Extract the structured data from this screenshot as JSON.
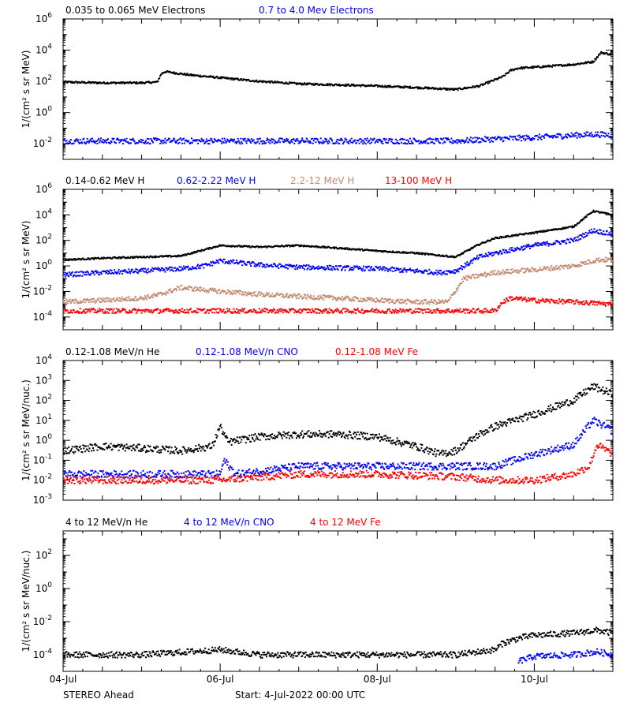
{
  "figure": {
    "footer": {
      "spacecraft": "STEREO Ahead",
      "start_label": "Start:  4-Jul-2022 00:00 UTC"
    },
    "x_axis": {
      "tick_labels": [
        "04-Jul",
        "06-Jul",
        "08-Jul",
        "10-Jul"
      ]
    }
  },
  "chart_data": [
    {
      "type": "scatter",
      "panel": "electrons",
      "ylabel": "1/(cm² s sr MeV)",
      "y_log": true,
      "ylim": [
        0.001,
        1000000
      ],
      "y_ticks": [
        "10^-2",
        "10^0",
        "10^2",
        "10^4",
        "10^6"
      ],
      "xlim_days": [
        0,
        7
      ],
      "series": [
        {
          "name": "0.035 to 0.065 MeV Electrons",
          "color": "#000000",
          "x": [
            0,
            0.5,
            1.0,
            1.2,
            1.25,
            1.3,
            1.6,
            2.0,
            2.5,
            3.0,
            3.5,
            4.0,
            4.5,
            5.0,
            5.3,
            5.6,
            5.7,
            5.8,
            6.0,
            6.5,
            6.75,
            6.85,
            7.0
          ],
          "y": [
            90,
            80,
            80,
            90,
            300,
            420,
            260,
            170,
            100,
            70,
            60,
            50,
            40,
            30,
            50,
            200,
            500,
            700,
            800,
            1200,
            1800,
            7000,
            5000
          ]
        },
        {
          "name": "0.7 to 4.0 Mev Electrons",
          "color": "#0000ff",
          "x": [
            0,
            1,
            2,
            3,
            4,
            5,
            5.5,
            6,
            6.5,
            6.8,
            7.0
          ],
          "y": [
            0.015,
            0.015,
            0.015,
            0.015,
            0.015,
            0.015,
            0.02,
            0.025,
            0.035,
            0.04,
            0.035
          ]
        }
      ]
    },
    {
      "type": "scatter",
      "panel": "protons",
      "ylabel": "1/(cm² s sr MeV)",
      "y_log": true,
      "ylim": [
        1e-05,
        1000000
      ],
      "y_ticks": [
        "10^-4",
        "10^-2",
        "10^0",
        "10^2",
        "10^4",
        "10^6"
      ],
      "xlim_days": [
        0,
        7
      ],
      "series": [
        {
          "name": "0.14-0.62 MeV H",
          "color": "#000000",
          "x": [
            0,
            0.5,
            1.0,
            1.5,
            2.0,
            2.5,
            3.0,
            3.5,
            4.0,
            4.5,
            5.0,
            5.3,
            5.5,
            6.0,
            6.5,
            6.75,
            7.0
          ],
          "y": [
            3,
            4,
            5,
            6,
            40,
            30,
            40,
            25,
            15,
            10,
            5,
            50,
            150,
            400,
            1200,
            20000,
            10000
          ]
        },
        {
          "name": "0.62-2.22 MeV H",
          "color": "#0000ff",
          "x": [
            0,
            0.5,
            1.0,
            1.5,
            1.8,
            2.0,
            2.5,
            3.0,
            3.5,
            4.0,
            4.5,
            4.8,
            5.0,
            5.3,
            5.5,
            6.0,
            6.5,
            6.75,
            7.0
          ],
          "y": [
            0.2,
            0.3,
            0.4,
            0.6,
            1.0,
            2.5,
            1.2,
            0.8,
            0.7,
            0.6,
            0.4,
            0.3,
            0.4,
            5,
            10,
            40,
            100,
            600,
            300
          ]
        },
        {
          "name": "2.2-12 MeV H",
          "color": "#c48a70",
          "x": [
            0,
            0.5,
            1.0,
            1.2,
            1.5,
            2.0,
            2.5,
            3.0,
            3.5,
            4.0,
            4.5,
            4.9,
            5.1,
            5.5,
            6.0,
            6.5,
            6.8,
            7.0
          ],
          "y": [
            0.0015,
            0.002,
            0.003,
            0.005,
            0.02,
            0.01,
            0.006,
            0.004,
            0.003,
            0.002,
            0.0015,
            0.0015,
            0.1,
            0.3,
            0.5,
            1.0,
            3.0,
            3.0
          ]
        },
        {
          "name": "13-100 MeV H",
          "color": "#ff0000",
          "x": [
            0,
            1,
            2,
            3,
            4,
            5,
            5.5,
            5.6,
            5.7,
            6.0,
            6.5,
            7.0
          ],
          "y": [
            0.0003,
            0.0003,
            0.0003,
            0.0003,
            0.0003,
            0.0003,
            0.0003,
            0.0015,
            0.003,
            0.002,
            0.0015,
            0.001
          ]
        }
      ]
    },
    {
      "type": "scatter",
      "panel": "ions-low",
      "ylabel": "1/(cm² s sr MeV/nuc.)",
      "y_log": true,
      "ylim": [
        0.001,
        10000
      ],
      "y_ticks": [
        "10^-3",
        "10^-2",
        "10^-1",
        "10^0",
        "10^1",
        "10^2",
        "10^3",
        "10^4"
      ],
      "xlim_days": [
        0,
        7
      ],
      "series": [
        {
          "name": "0.12-1.08 MeV/n He",
          "color": "#000000",
          "x": [
            0,
            0.5,
            1.0,
            1.5,
            1.9,
            2.0,
            2.1,
            2.5,
            3.0,
            3.5,
            4.0,
            4.5,
            4.8,
            5.0,
            5.3,
            5.5,
            6.0,
            6.5,
            6.75,
            7.0
          ],
          "y": [
            0.3,
            0.5,
            0.4,
            0.3,
            0.5,
            5,
            0.8,
            1.5,
            2,
            2,
            1.5,
            0.5,
            0.2,
            0.3,
            2,
            5,
            20,
            100,
            500,
            200
          ]
        },
        {
          "name": "0.12-1.08 MeV/n CNO",
          "color": "#0000ff",
          "x": [
            0,
            1,
            2,
            2.05,
            2.2,
            3,
            4,
            5,
            5.5,
            6.0,
            6.5,
            6.75,
            7.0
          ],
          "y": [
            0.02,
            0.02,
            0.02,
            0.1,
            0.02,
            0.05,
            0.05,
            0.05,
            0.05,
            0.2,
            0.6,
            10,
            3
          ]
        },
        {
          "name": "0.12-1.08 MeV Fe",
          "color": "#ff0000",
          "x": [
            0,
            1,
            2,
            3,
            4,
            5,
            5.5,
            6.0,
            6.5,
            6.7,
            6.8,
            7.0
          ],
          "y": [
            0.01,
            0.01,
            0.01,
            0.02,
            0.02,
            0.015,
            0.01,
            0.01,
            0.02,
            0.05,
            0.6,
            0.2
          ]
        }
      ]
    },
    {
      "type": "scatter",
      "panel": "ions-high",
      "ylabel": "1/(cm² s sr MeV/nuc.)",
      "y_log": true,
      "ylim": [
        1e-05,
        3000
      ],
      "y_ticks": [
        "10^-4",
        "10^-2",
        "10^0",
        "10^2"
      ],
      "xlim_days": [
        0,
        7
      ],
      "series": [
        {
          "name": "4 to 12 MeV/n He",
          "color": "#000000",
          "x": [
            0,
            1,
            2,
            2.5,
            3,
            4,
            5,
            5.5,
            5.6,
            5.8,
            6.0,
            6.5,
            6.8,
            7.0
          ],
          "y": [
            0.0001,
            0.0001,
            0.0002,
            0.0001,
            0.0001,
            0.0001,
            0.0001,
            0.0002,
            0.0005,
            0.001,
            0.0015,
            0.002,
            0.003,
            0.002
          ]
        },
        {
          "name": "4 to 12 MeV/n CNO",
          "color": "#0000ff",
          "x": [
            5.8,
            6.0,
            6.5,
            6.8,
            7.0
          ],
          "y": [
            4e-05,
            8e-05,
            0.0001,
            0.00015,
            0.0001
          ]
        },
        {
          "name": "4 to 12 MeV Fe",
          "color": "#ff0000",
          "x": [],
          "y": []
        }
      ]
    }
  ]
}
